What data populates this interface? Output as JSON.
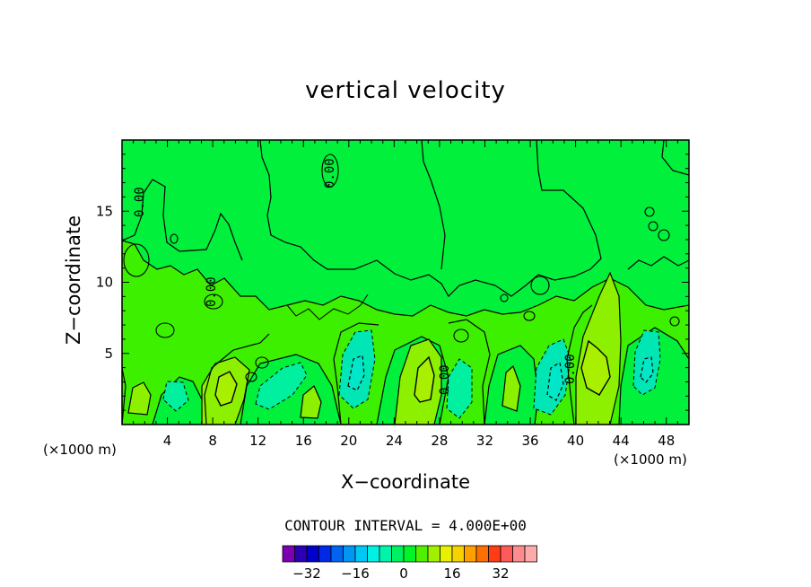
{
  "chart_data": {
    "type": "contour",
    "title": "vertical velocity",
    "xlabel": "X−coordinate",
    "ylabel": "Z−coordinate",
    "x_unit_label": "(×1000 m)",
    "y_unit_label": "(×1000 m)",
    "xlim": [
      0,
      50
    ],
    "ylim": [
      0,
      20
    ],
    "x_ticks": [
      4,
      8,
      12,
      16,
      20,
      24,
      28,
      32,
      36,
      40,
      44,
      48
    ],
    "y_ticks": [
      5,
      10,
      15
    ],
    "contour_interval_text": "CONTOUR INTERVAL = 4.000E+00",
    "contour_label": "0.00",
    "colorbar": {
      "ticks": [
        -32,
        -16,
        0,
        16,
        32
      ],
      "tick_labels": [
        "−32",
        "−16",
        "0",
        "16",
        "32"
      ],
      "colors": [
        "#7b00b4",
        "#2a00b4",
        "#0000cd",
        "#0028e6",
        "#0064f0",
        "#0096f5",
        "#00c8f5",
        "#00f0e6",
        "#00f5aa",
        "#00f064",
        "#00f528",
        "#50f000",
        "#a0f000",
        "#e6f000",
        "#f5d200",
        "#ffa000",
        "#ff6e00",
        "#ff3c14",
        "#ff5a5a",
        "#ff8c8c",
        "#ffaaaa"
      ]
    },
    "regions": [
      {
        "name": "upper background",
        "level": 0,
        "color": "#00f03c"
      },
      {
        "name": "weak updraft band",
        "level": 4,
        "color": "#3cf000"
      },
      {
        "name": "updraft x~10",
        "level": 8,
        "color": "#8cf000"
      },
      {
        "name": "updraft x~27",
        "level": 8,
        "color": "#8cf000"
      },
      {
        "name": "updraft x~42",
        "level": 12,
        "color": "#a0f000"
      },
      {
        "name": "downdraft x~21",
        "level": -8,
        "color": "#00e6c8"
      },
      {
        "name": "downdraft x~30",
        "level": -4,
        "color": "#00f0a0"
      },
      {
        "name": "downdraft x~38",
        "level": -8,
        "color": "#00e6c8"
      },
      {
        "name": "downdraft x~46",
        "level": -8,
        "color": "#00e6c8"
      }
    ]
  }
}
